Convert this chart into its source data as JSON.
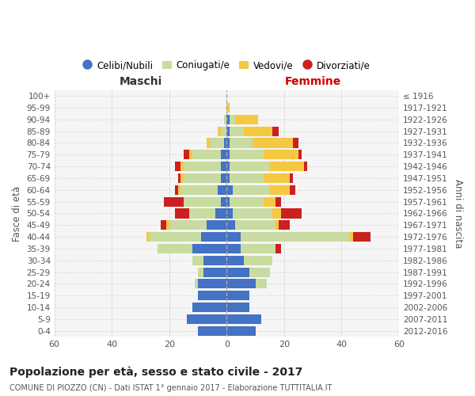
{
  "age_groups": [
    "100+",
    "95-99",
    "90-94",
    "85-89",
    "80-84",
    "75-79",
    "70-74",
    "65-69",
    "60-64",
    "55-59",
    "50-54",
    "45-49",
    "40-44",
    "35-39",
    "30-34",
    "25-29",
    "20-24",
    "15-19",
    "10-14",
    "5-9",
    "0-4"
  ],
  "birth_years": [
    "≤ 1916",
    "1917-1921",
    "1922-1926",
    "1927-1931",
    "1932-1936",
    "1937-1941",
    "1942-1946",
    "1947-1951",
    "1952-1956",
    "1957-1961",
    "1962-1966",
    "1967-1971",
    "1972-1976",
    "1977-1981",
    "1982-1986",
    "1987-1991",
    "1992-1996",
    "1997-2001",
    "2002-2006",
    "2007-2011",
    "2012-2016"
  ],
  "colors": {
    "celibi": "#4472c4",
    "coniugati": "#c8dba0",
    "vedovi": "#f5c842",
    "divorziati": "#cc2020"
  },
  "maschi": {
    "celibi": [
      0,
      0,
      0,
      0,
      1,
      2,
      2,
      2,
      3,
      2,
      4,
      7,
      9,
      12,
      8,
      8,
      10,
      10,
      12,
      14,
      10
    ],
    "coniugati": [
      0,
      0,
      1,
      2,
      5,
      10,
      13,
      13,
      13,
      13,
      9,
      13,
      18,
      12,
      4,
      2,
      1,
      0,
      0,
      0,
      0
    ],
    "vedovi": [
      0,
      0,
      0,
      1,
      1,
      1,
      1,
      1,
      1,
      0,
      0,
      1,
      1,
      0,
      0,
      0,
      0,
      0,
      0,
      0,
      0
    ],
    "divorziati": [
      0,
      0,
      0,
      0,
      0,
      2,
      2,
      1,
      1,
      7,
      5,
      2,
      0,
      0,
      0,
      0,
      0,
      0,
      0,
      0,
      0
    ]
  },
  "femmine": {
    "celibi": [
      0,
      0,
      1,
      1,
      1,
      1,
      1,
      1,
      2,
      1,
      2,
      3,
      5,
      5,
      6,
      8,
      10,
      8,
      8,
      12,
      10
    ],
    "coniugati": [
      0,
      0,
      2,
      5,
      8,
      12,
      14,
      12,
      13,
      12,
      14,
      14,
      38,
      12,
      10,
      7,
      4,
      0,
      0,
      0,
      0
    ],
    "vedovi": [
      0,
      1,
      8,
      10,
      14,
      12,
      12,
      9,
      7,
      4,
      3,
      1,
      1,
      0,
      0,
      0,
      0,
      0,
      0,
      0,
      0
    ],
    "divorziati": [
      0,
      0,
      0,
      2,
      2,
      1,
      1,
      1,
      2,
      2,
      7,
      4,
      6,
      2,
      0,
      0,
      0,
      0,
      0,
      0,
      0
    ]
  },
  "title": "Popolazione per età, sesso e stato civile - 2017",
  "subtitle": "COMUNE DI PIOZZO (CN) - Dati ISTAT 1° gennaio 2017 - Elaborazione TUTTITALIA.IT",
  "label_maschi": "Maschi",
  "label_femmine": "Femmine",
  "ylabel_left": "Fasce di età",
  "ylabel_right": "Anni di nascita",
  "xlim": 60,
  "legend_labels": [
    "Celibi/Nubili",
    "Coniugati/e",
    "Vedovi/e",
    "Divorziati/e"
  ],
  "bg_color": "#ffffff",
  "plot_bg": "#f5f5f5",
  "grid_color": "#cccccc"
}
